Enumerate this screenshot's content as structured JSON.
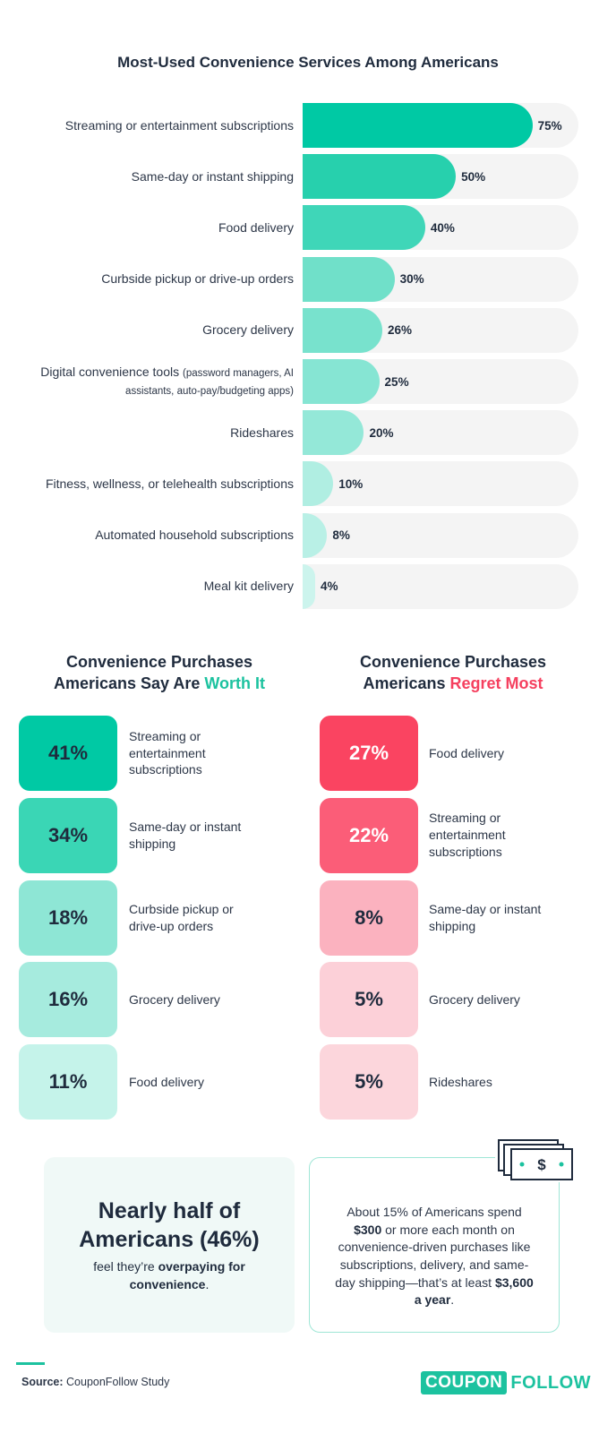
{
  "chart_data": {
    "type": "bar",
    "orientation": "horizontal",
    "title": "Most-Used Convenience Services Among Americans",
    "categories": [
      "Streaming or entertainment subscriptions",
      "Same-day or instant shipping",
      "Food delivery",
      "Curbside pickup or drive-up orders",
      "Grocery delivery",
      "Digital convenience tools (password managers, AI assistants, auto-pay/budgeting apps)",
      "Rideshares",
      "Fitness, wellness, or telehealth subscriptions",
      "Automated household subscriptions",
      "Meal kit delivery"
    ],
    "values": [
      75,
      50,
      40,
      30,
      26,
      25,
      20,
      10,
      8,
      4
    ],
    "value_labels": [
      "75%",
      "50%",
      "40%",
      "30%",
      "26%",
      "25%",
      "20%",
      "10%",
      "8%",
      "4%"
    ],
    "xlim": [
      0,
      90
    ],
    "colors": [
      "#00c9a4",
      "#27d0ad",
      "#3fd6b8",
      "#70e0c9",
      "#78e2cd",
      "#86e5d3",
      "#94e8d8",
      "#b0eee2",
      "#b9f0e6",
      "#ccf4ed"
    ],
    "track_color": "#f4f4f4"
  },
  "worth_it": {
    "title_line1": "Convenience Purchases",
    "title_prefix": "Americans Say Are ",
    "title_highlight": "Worth It",
    "items": [
      {
        "value": "41%",
        "label": "Streaming or entertainment subscriptions",
        "bg": "#00c9a4"
      },
      {
        "value": "34%",
        "label": "Same-day or instant shipping",
        "bg": "#3ad6b5"
      },
      {
        "value": "18%",
        "label": "Curbside pickup or drive-up orders",
        "bg": "#8ee6d5"
      },
      {
        "value": "16%",
        "label": "Grocery delivery",
        "bg": "#a6ebde"
      },
      {
        "value": "11%",
        "label": "Food delivery",
        "bg": "#c5f3ea"
      }
    ]
  },
  "regret_most": {
    "title_line1": "Convenience Purchases",
    "title_prefix": "Americans ",
    "title_highlight": "Regret Most",
    "items": [
      {
        "value": "27%",
        "label": "Food delivery",
        "bg": "#fa4461",
        "fg": "#ffffff"
      },
      {
        "value": "22%",
        "label": "Streaming or entertainment subscriptions",
        "bg": "#fb5d78",
        "fg": "#ffffff"
      },
      {
        "value": "8%",
        "label": "Same-day or instant shipping",
        "bg": "#fbb2bf",
        "fg": "#1f2b3d"
      },
      {
        "value": "5%",
        "label": "Grocery delivery",
        "bg": "#fcd0d8",
        "fg": "#1f2b3d"
      },
      {
        "value": "5%",
        "label": "Rideshares",
        "bg": "#fcd6dc",
        "fg": "#1f2b3d"
      }
    ]
  },
  "callout_left": {
    "big_line1": "Nearly half of",
    "big_line2": "Americans (46%)",
    "text_prefix": "feel they’re ",
    "text_bold1": "overpaying for",
    "text_bold2": "convenience",
    "text_suffix": "."
  },
  "callout_right": {
    "p1": "About 15% of Americans spend ",
    "b1": "$300",
    "p2": " or more each month on convenience-driven purchases like subscriptions, delivery, and same-day shipping—that’s at least ",
    "b2": "$3,600 a year",
    "p3": ".",
    "icon_symbol": "$"
  },
  "footer": {
    "source_label": "Source:",
    "source_text": " CouponFollow Study",
    "logo_part1": "COUPON",
    "logo_part2": "FOLLOW"
  },
  "colors": {
    "accent_green": "#1cc29f",
    "accent_red": "#f5405f",
    "text_dark": "#1f2b3d"
  }
}
